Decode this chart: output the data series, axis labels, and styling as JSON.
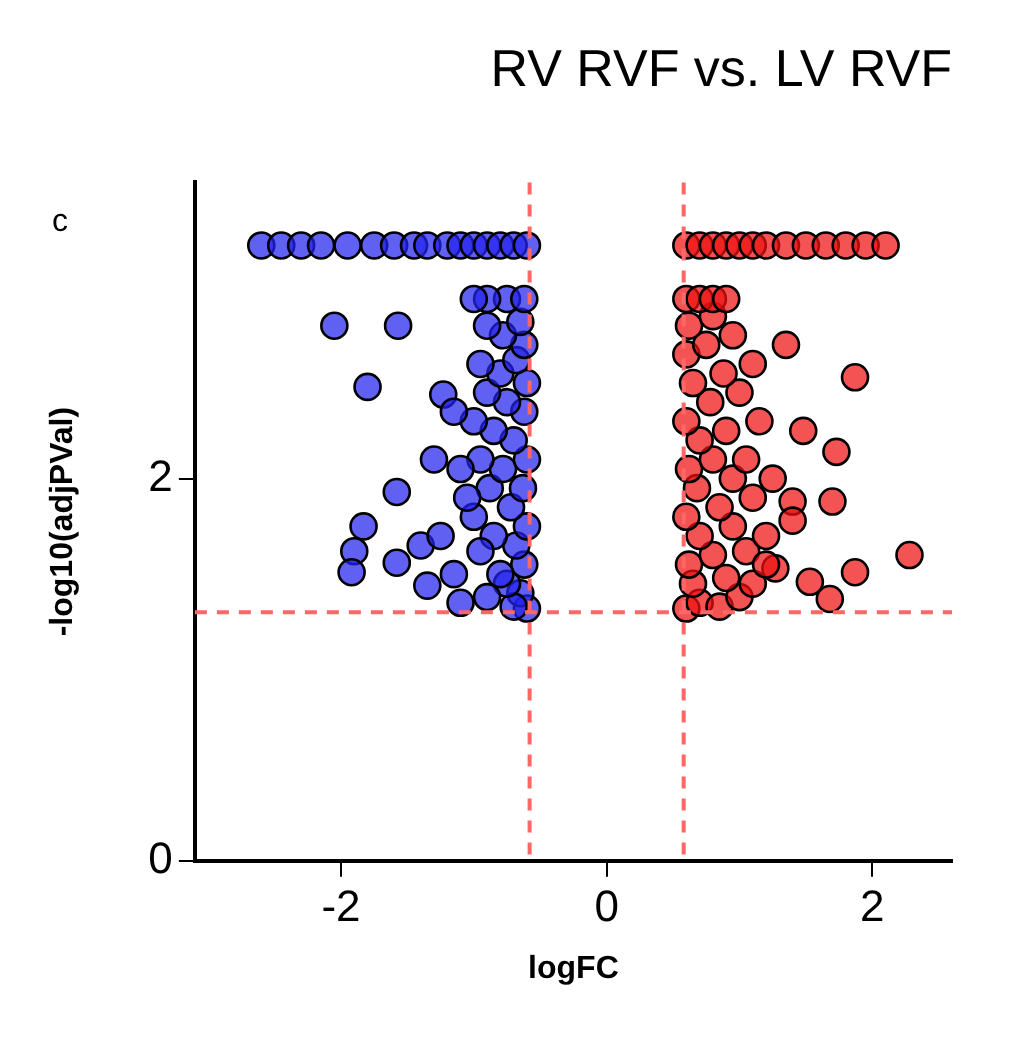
{
  "chart_data": {
    "type": "scatter",
    "title": "RV RVF vs. LV RVF",
    "xlabel": "logFC",
    "ylabel": "-log10(adjPVal)",
    "annotations": [
      "c"
    ],
    "xlim": [
      -3.1,
      2.6
    ],
    "xticks": [
      -2,
      0,
      2
    ],
    "ylim": [
      0,
      3.55
    ],
    "yticks": [
      0,
      2
    ],
    "grid": false,
    "legend": false,
    "marker": "circle",
    "ref_lines": [
      {
        "axis": "x",
        "value": -0.58,
        "color": "#ff6666",
        "line_style": "dashed"
      },
      {
        "axis": "x",
        "value": 0.58,
        "color": "#ff6666",
        "line_style": "dashed"
      },
      {
        "axis": "y",
        "value": 1.3,
        "color": "#ff6666",
        "line_style": "dashed"
      }
    ],
    "series": [
      {
        "color": "#2222ee",
        "x": [
          -2.6,
          -2.45,
          -2.3,
          -2.15,
          -1.95,
          -1.75,
          -1.6,
          -1.45,
          -1.35,
          -1.2,
          -1.1,
          -1.0,
          -0.9,
          -0.8,
          -0.7,
          -0.6,
          -2.05,
          -1.57,
          -1.8,
          -1.58,
          -1.83,
          -1.9,
          -1.92,
          -1.58,
          -1.4,
          -1.35,
          -1.1,
          -1.23,
          -0.6,
          -0.65,
          -0.7,
          -0.75,
          -0.62,
          -0.8,
          -0.9,
          -0.68,
          -0.85,
          -0.6,
          -0.95,
          -1.0,
          -0.72,
          -0.63,
          -0.88,
          -1.05,
          -0.78,
          -0.6,
          -0.95,
          -1.1,
          -0.7,
          -0.85,
          -1.0,
          -0.62,
          -1.15,
          -0.75,
          -0.9,
          -0.6,
          -0.8,
          -0.68,
          -0.95,
          -0.62,
          -0.78,
          -0.9,
          -0.65,
          -0.75,
          -0.9,
          -0.62,
          -1.0,
          -1.25,
          -1.15,
          -1.3
        ],
        "values": [
          3.22,
          3.22,
          3.22,
          3.22,
          3.22,
          3.22,
          3.22,
          3.22,
          3.22,
          3.22,
          3.22,
          3.22,
          3.22,
          3.22,
          3.22,
          3.22,
          2.8,
          2.8,
          2.48,
          1.93,
          1.75,
          1.62,
          1.51,
          1.56,
          1.65,
          1.44,
          1.35,
          2.44,
          1.32,
          1.4,
          1.33,
          1.45,
          1.55,
          1.5,
          1.38,
          1.65,
          1.7,
          1.75,
          1.62,
          1.8,
          1.85,
          1.95,
          1.95,
          1.9,
          2.05,
          2.1,
          2.1,
          2.05,
          2.2,
          2.25,
          2.3,
          2.35,
          2.35,
          2.4,
          2.45,
          2.5,
          2.55,
          2.62,
          2.6,
          2.7,
          2.75,
          2.8,
          2.82,
          2.94,
          2.94,
          2.94,
          2.94,
          1.7,
          1.5,
          2.1
        ]
      },
      {
        "color": "#ee1111",
        "x": [
          0.6,
          0.7,
          0.8,
          0.9,
          1.0,
          1.1,
          1.2,
          1.35,
          1.5,
          1.65,
          1.8,
          1.95,
          2.1,
          1.35,
          1.87,
          1.48,
          1.73,
          1.7,
          1.4,
          2.28,
          1.87,
          1.68,
          1.53,
          1.27,
          1.4,
          0.6,
          0.7,
          0.85,
          1.0,
          0.65,
          0.9,
          1.1,
          0.62,
          0.8,
          1.05,
          0.7,
          0.95,
          1.2,
          0.6,
          0.85,
          1.1,
          0.68,
          0.95,
          0.62,
          0.8,
          1.05,
          0.7,
          0.9,
          1.15,
          0.6,
          0.78,
          1.0,
          0.65,
          0.88,
          1.1,
          0.6,
          0.75,
          0.95,
          0.62,
          0.8,
          0.6,
          0.7,
          0.8,
          0.9,
          1.25,
          1.2
        ],
        "values": [
          3.22,
          3.22,
          3.22,
          3.22,
          3.22,
          3.22,
          3.22,
          3.22,
          3.22,
          3.22,
          3.22,
          3.22,
          3.22,
          2.7,
          2.53,
          2.25,
          2.14,
          1.88,
          1.88,
          1.6,
          1.51,
          1.37,
          1.46,
          1.53,
          1.78,
          1.32,
          1.35,
          1.33,
          1.38,
          1.45,
          1.48,
          1.45,
          1.55,
          1.6,
          1.62,
          1.7,
          1.75,
          1.7,
          1.8,
          1.85,
          1.9,
          1.95,
          2.0,
          2.05,
          2.1,
          2.1,
          2.2,
          2.25,
          2.3,
          2.3,
          2.4,
          2.45,
          2.5,
          2.55,
          2.6,
          2.65,
          2.7,
          2.75,
          2.8,
          2.85,
          2.94,
          2.94,
          2.94,
          2.94,
          2.0,
          1.55
        ]
      }
    ]
  }
}
